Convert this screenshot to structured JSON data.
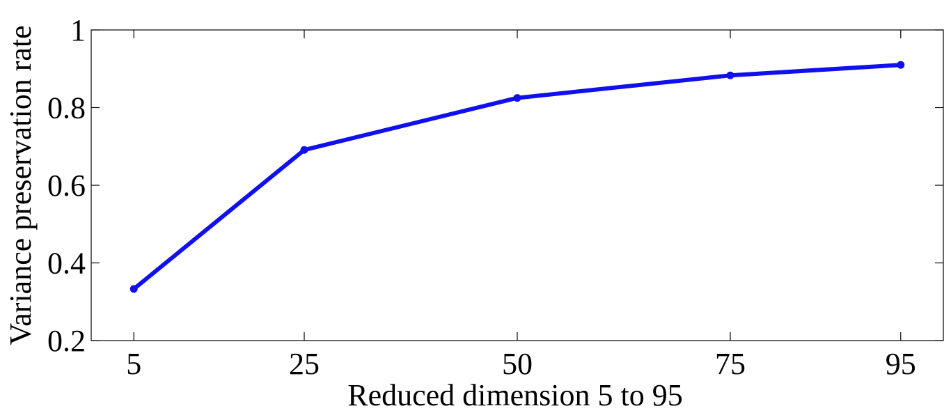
{
  "chart_data": {
    "type": "line",
    "x": [
      5,
      25,
      50,
      75,
      95
    ],
    "x_tick_labels": [
      "5",
      "25",
      "50",
      "75",
      "95"
    ],
    "series": [
      {
        "values": [
          0.333,
          0.691,
          0.825,
          0.883,
          0.91
        ]
      }
    ],
    "y_ticks": [
      0.2,
      0.4,
      0.6,
      0.8,
      1
    ],
    "y_tick_labels": [
      "0.2",
      "0.4",
      "0.6",
      "0.8",
      "1"
    ],
    "xlabel": "Reduced dimension 5 to 95",
    "ylabel": "Variance preservation rate",
    "xlim": [
      0,
      100
    ],
    "ylim": [
      0.2,
      1
    ],
    "grid": false,
    "colors": {
      "series": "#1010ee",
      "axes": "#000000"
    }
  }
}
